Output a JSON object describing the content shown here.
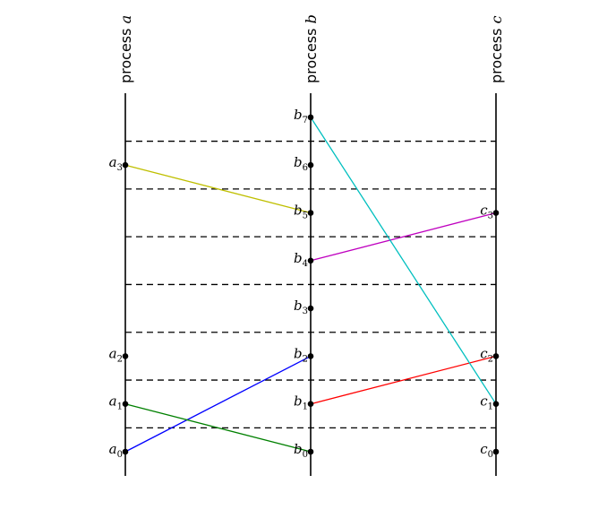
{
  "processes": [
    {
      "id": "a",
      "title_prefix": "process ",
      "title_var": "a"
    },
    {
      "id": "b",
      "title_prefix": "process ",
      "title_var": "b"
    },
    {
      "id": "c",
      "title_prefix": "process ",
      "title_var": "c"
    }
  ],
  "events": [
    {
      "process": "a",
      "var": "a",
      "index": "0",
      "level": 0
    },
    {
      "process": "a",
      "var": "a",
      "index": "1",
      "level": 1
    },
    {
      "process": "a",
      "var": "a",
      "index": "2",
      "level": 2
    },
    {
      "process": "a",
      "var": "a",
      "index": "3",
      "level": 6
    },
    {
      "process": "b",
      "var": "b",
      "index": "0",
      "level": 0
    },
    {
      "process": "b",
      "var": "b",
      "index": "1",
      "level": 1
    },
    {
      "process": "b",
      "var": "b",
      "index": "2",
      "level": 2
    },
    {
      "process": "b",
      "var": "b",
      "index": "3",
      "level": 3
    },
    {
      "process": "b",
      "var": "b",
      "index": "4",
      "level": 4
    },
    {
      "process": "b",
      "var": "b",
      "index": "5",
      "level": 5
    },
    {
      "process": "b",
      "var": "b",
      "index": "6",
      "level": 6
    },
    {
      "process": "b",
      "var": "b",
      "index": "7",
      "level": 7
    },
    {
      "process": "c",
      "var": "c",
      "index": "0",
      "level": 0
    },
    {
      "process": "c",
      "var": "c",
      "index": "1",
      "level": 1
    },
    {
      "process": "c",
      "var": "c",
      "index": "2",
      "level": 2
    },
    {
      "process": "c",
      "var": "c",
      "index": "3",
      "level": 5
    }
  ],
  "messages": [
    {
      "from": "a0",
      "to": "b2",
      "color": "#0000ff"
    },
    {
      "from": "a1",
      "to": "b0",
      "color": "#008000"
    },
    {
      "from": "a3",
      "to": "b5",
      "color": "#bfbf00"
    },
    {
      "from": "b1",
      "to": "c2",
      "color": "#ff0000"
    },
    {
      "from": "b4",
      "to": "c3",
      "color": "#bf00bf"
    },
    {
      "from": "b7",
      "to": "c1",
      "color": "#00bfbf"
    }
  ],
  "separator_levels": [
    0.5,
    1.5,
    2.5,
    3.5,
    4.5,
    5.5,
    6.5
  ]
}
